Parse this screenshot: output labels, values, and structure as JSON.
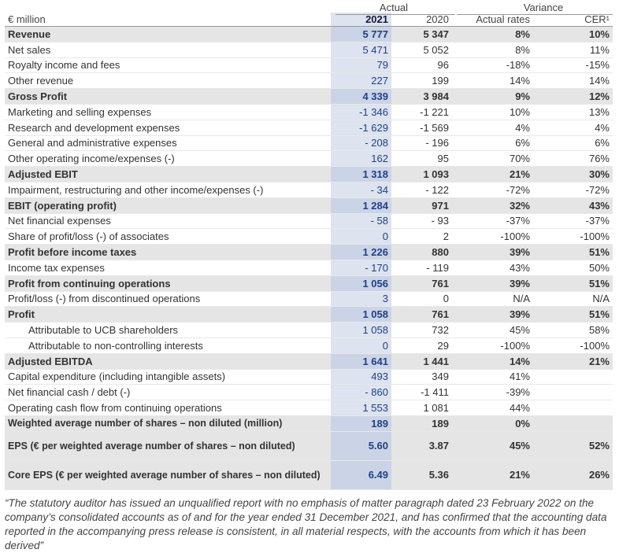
{
  "header": {
    "actual": "Actual",
    "variance": "Variance",
    "unit": "€ million",
    "col_2021": "2021",
    "col_2020": "2020",
    "col_actual_rates": "Actual rates",
    "col_cer": "CER¹"
  },
  "rows": [
    {
      "label": "Revenue",
      "v2021": "5 777",
      "v2020": "5 347",
      "act": "8%",
      "cer": "10%",
      "bold": true
    },
    {
      "label": "Net sales",
      "v2021": "5 471",
      "v2020": "5 052",
      "act": "8%",
      "cer": "11%"
    },
    {
      "label": "Royalty income and fees",
      "v2021": "79",
      "v2020": "96",
      "act": "-18%",
      "cer": "-15%"
    },
    {
      "label": "Other revenue",
      "v2021": "227",
      "v2020": "199",
      "act": "14%",
      "cer": "14%"
    },
    {
      "label": "Gross Profit",
      "v2021": "4 339",
      "v2020": "3 984",
      "act": "9%",
      "cer": "12%",
      "bold": true
    },
    {
      "label": "Marketing and selling expenses",
      "v2021": "-1 346",
      "v2020": "-1 221",
      "act": "10%",
      "cer": "13%"
    },
    {
      "label": "Research and development expenses",
      "v2021": "-1 629",
      "v2020": "-1 569",
      "act": "4%",
      "cer": "4%"
    },
    {
      "label": "General and administrative expenses",
      "v2021": "- 208",
      "v2020": "- 196",
      "act": "6%",
      "cer": "6%"
    },
    {
      "label": "Other operating income/expenses (-)",
      "v2021": "162",
      "v2020": "95",
      "act": "70%",
      "cer": "76%"
    },
    {
      "label": "Adjusted EBIT",
      "v2021": "1 318",
      "v2020": "1 093",
      "act": "21%",
      "cer": "30%",
      "bold": true
    },
    {
      "label": "Impairment, restructuring and other income/expenses (-)",
      "v2021": "- 34",
      "v2020": "- 122",
      "act": "-72%",
      "cer": "-72%"
    },
    {
      "label": "EBIT (operating profit)",
      "v2021": "1 284",
      "v2020": "971",
      "act": "32%",
      "cer": "43%",
      "bold": true
    },
    {
      "label": "Net financial expenses",
      "v2021": "- 58",
      "v2020": "- 93",
      "act": "-37%",
      "cer": "-37%"
    },
    {
      "label": "Share of profit/loss (-) of associates",
      "v2021": "0",
      "v2020": "2",
      "act": "-100%",
      "cer": "-100%"
    },
    {
      "label": "Profit before income taxes",
      "v2021": "1 226",
      "v2020": "880",
      "act": "39%",
      "cer": "51%",
      "bold": true
    },
    {
      "label": "Income tax expenses",
      "v2021": "- 170",
      "v2020": "- 119",
      "act": "43%",
      "cer": "50%"
    },
    {
      "label": "Profit from continuing operations",
      "v2021": "1 056",
      "v2020": "761",
      "act": "39%",
      "cer": "51%",
      "bold": true
    },
    {
      "label": "Profit/loss (-) from discontinued operations",
      "v2021": "3",
      "v2020": "0",
      "act": "N/A",
      "cer": "N/A"
    },
    {
      "label": "Profit",
      "v2021": "1 058",
      "v2020": "761",
      "act": "39%",
      "cer": "51%",
      "bold": true
    },
    {
      "label": "Attributable to UCB shareholders",
      "v2021": "1 058",
      "v2020": "732",
      "act": "45%",
      "cer": "58%",
      "indent": true
    },
    {
      "label": "Attributable to non-controlling interests",
      "v2021": "0",
      "v2020": "29",
      "act": "-100%",
      "cer": "-100%",
      "indent": true
    },
    {
      "label": "Adjusted EBITDA",
      "v2021": "1 641",
      "v2020": "1 441",
      "act": "14%",
      "cer": "21%",
      "bold": true
    },
    {
      "label": "Capital expenditure (including intangible assets)",
      "v2021": "493",
      "v2020": "349",
      "act": "41%",
      "cer": ""
    },
    {
      "label": "Net financial cash / debt (-)",
      "v2021": "- 860",
      "v2020": "-1 411",
      "act": "-39%",
      "cer": ""
    },
    {
      "label": "Operating cash flow from continuing operations",
      "v2021": "1 553",
      "v2020": "1 081",
      "act": "44%",
      "cer": ""
    },
    {
      "label": "Weighted average number of shares – non diluted (million)",
      "v2021": "189",
      "v2020": "189",
      "act": "0%",
      "cer": "",
      "shade": true
    },
    {
      "label": "EPS (€ per weighted average number of shares – non diluted)",
      "v2021": "5.60",
      "v2020": "3.87",
      "act": "45%",
      "cer": "52%",
      "shade": true,
      "tall": true
    },
    {
      "label": "Core EPS (€ per weighted average number of shares – non diluted)",
      "v2021": "6.49",
      "v2020": "5.36",
      "act": "21%",
      "cer": "26%",
      "shade": true,
      "tall": true
    }
  ],
  "footnote": "“The statutory auditor has issued an unqualified report with no emphasis of matter paragraph dated 23 February 2022 on the company’s consolidated accounts as of and for the year ended 31 December 2021, and has confirmed that the accounting data reported in the accompanying press release is consistent, in all material respects, with the accounts from which it has been derived”"
}
